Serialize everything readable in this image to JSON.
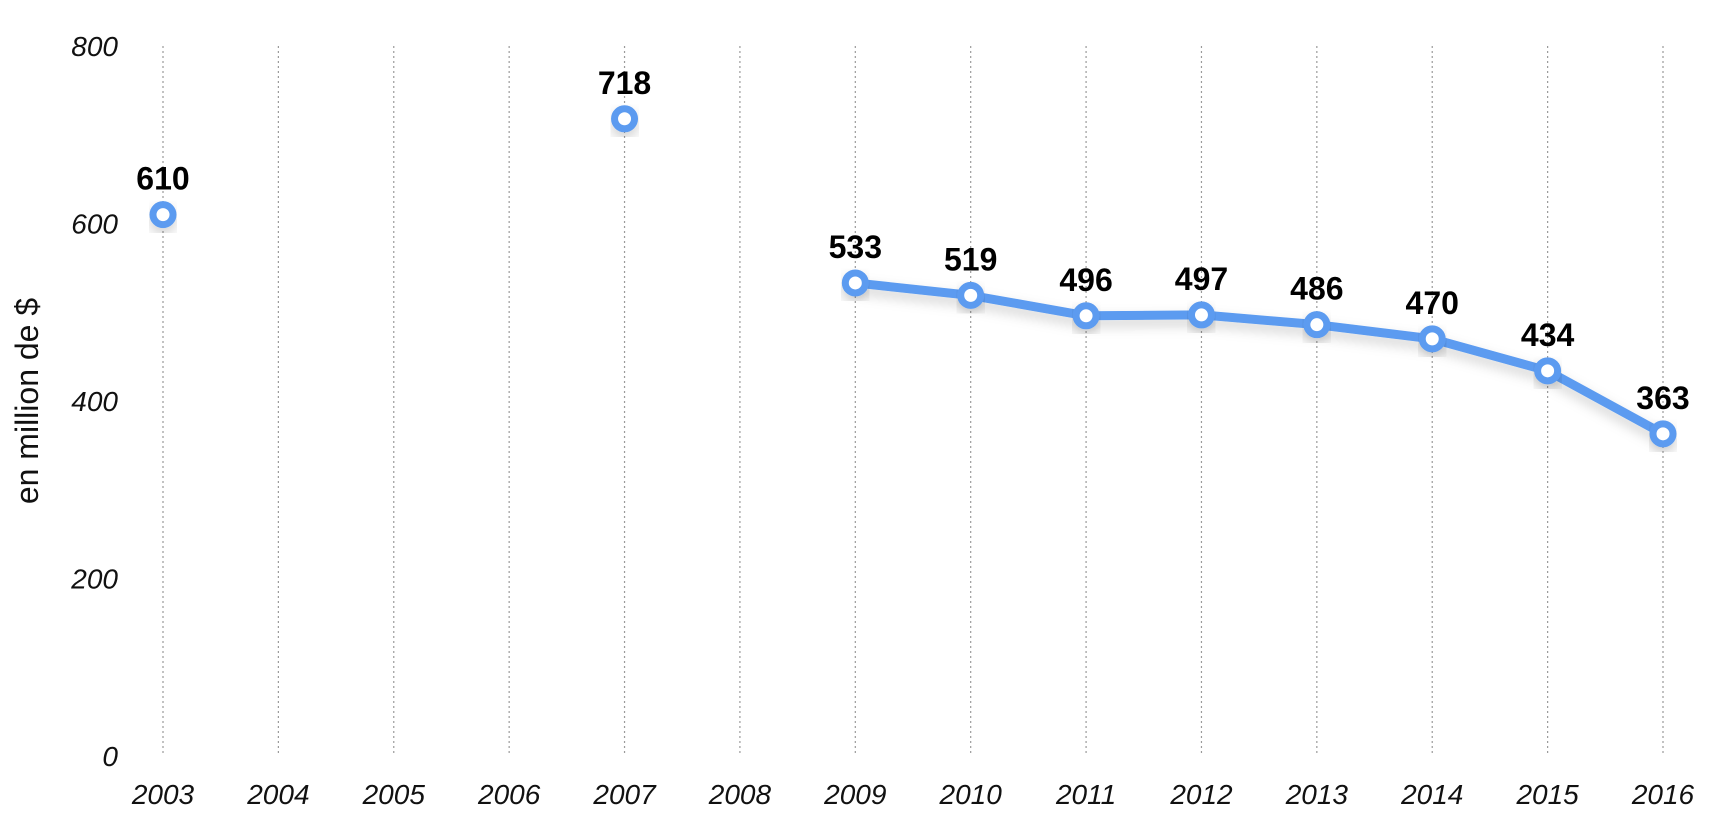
{
  "chart_data": {
    "type": "line",
    "categories": [
      "2003",
      "2004",
      "2005",
      "2006",
      "2007",
      "2008",
      "2009",
      "2010",
      "2011",
      "2012",
      "2013",
      "2014",
      "2015",
      "2016"
    ],
    "series": [
      {
        "values": [
          610,
          null,
          null,
          null,
          718,
          null,
          533,
          519,
          496,
          497,
          486,
          470,
          434,
          363
        ]
      }
    ],
    "data_labels": [
      "610",
      "",
      "",
      "",
      "718",
      "",
      "533",
      "519",
      "496",
      "497",
      "486",
      "470",
      "434",
      "363"
    ],
    "ylabel": "en million de $",
    "xlabel": "",
    "ylim": [
      0,
      800
    ],
    "yticks": [
      0,
      200,
      400,
      600,
      800
    ],
    "ytick_labels": [
      "0",
      "200",
      "400",
      "600",
      "800"
    ],
    "grid": "vertical",
    "line_color": "#5B9BF0"
  }
}
